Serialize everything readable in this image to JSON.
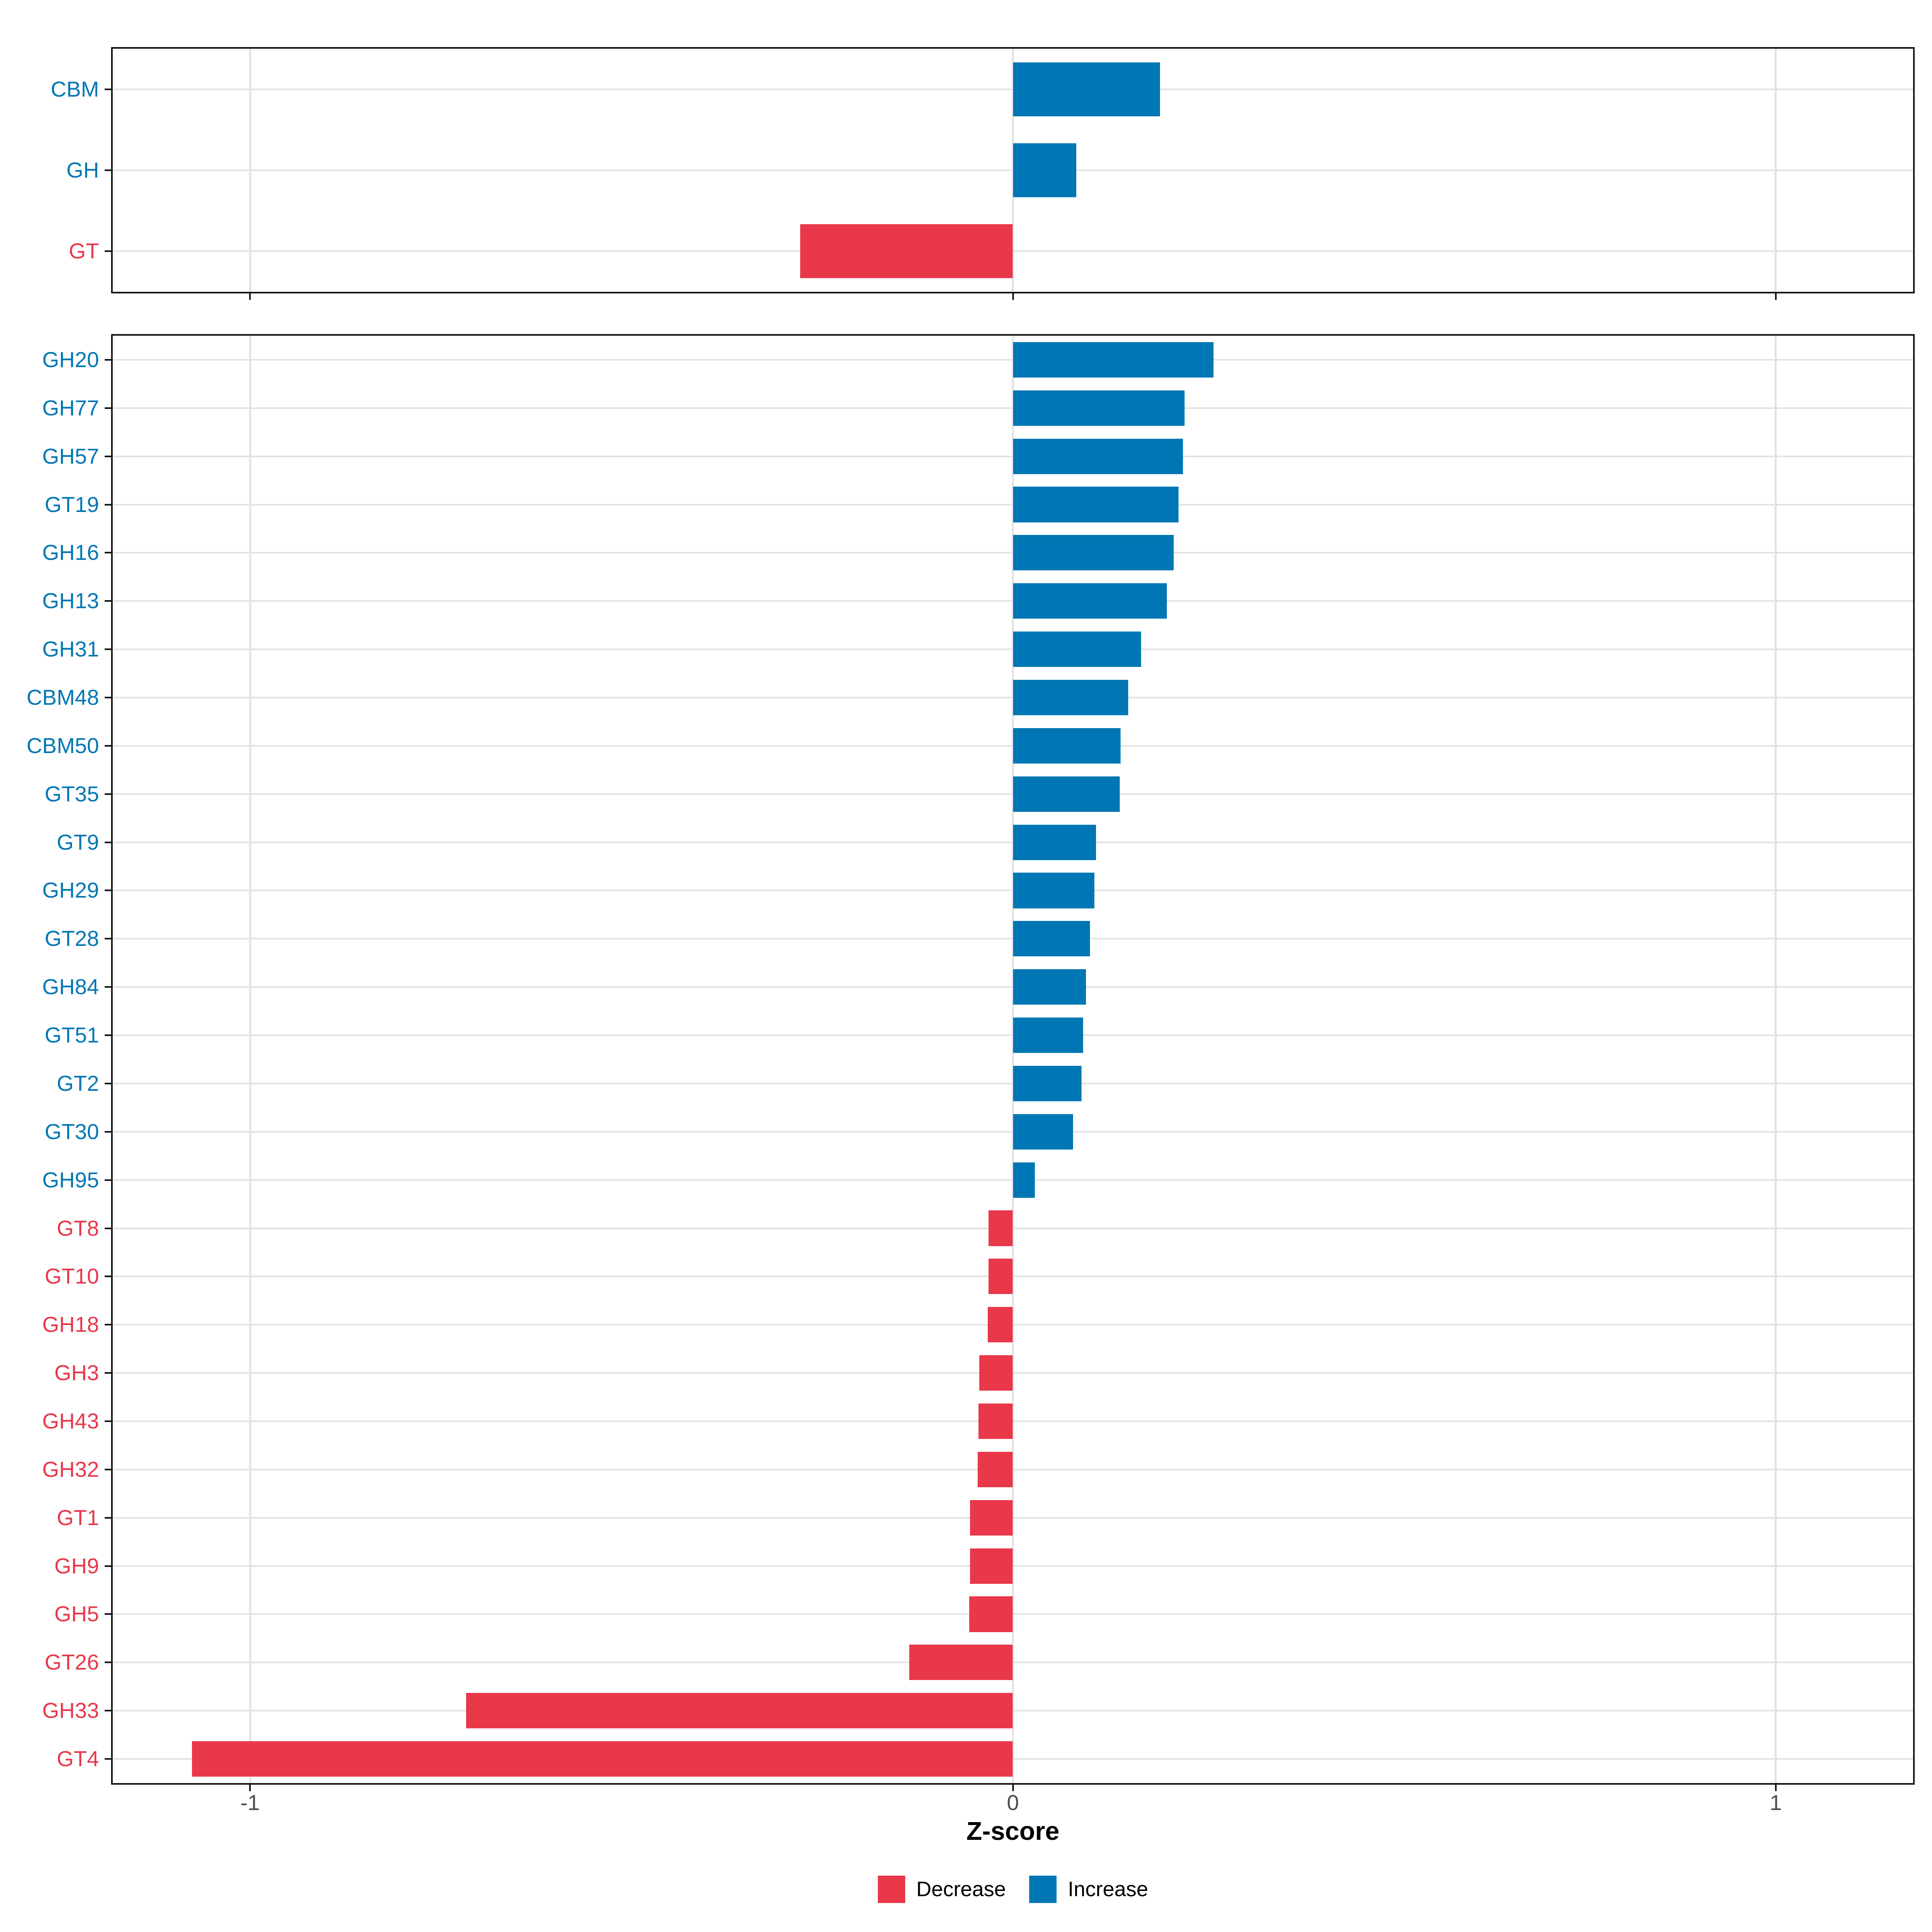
{
  "figure": {
    "xlabel": "Z-score",
    "x_tick_labels": [
      "-1",
      "0",
      "1"
    ]
  },
  "legend": {
    "items": [
      {
        "label": "Decrease",
        "color": "#e8384a"
      },
      {
        "label": "Increase",
        "color": "#0077b4"
      }
    ]
  },
  "colors": {
    "increase": "#0077b4",
    "decrease": "#e8384a",
    "grid": "#e3e3e3",
    "axis_text": "#4d4d4d",
    "panel_border": "#141414"
  },
  "chart_data": [
    {
      "type": "bar",
      "orientation": "horizontal",
      "panel": "top",
      "xlabel": "Z-score",
      "xlim": [
        -1.18,
        1.18
      ],
      "x_ticks": [
        -1,
        0,
        1
      ],
      "grid": true,
      "legend_position": "bottom",
      "categories": [
        "CBM",
        "GH",
        "GT"
      ],
      "values": [
        0.193,
        0.083,
        -0.279
      ]
    },
    {
      "type": "bar",
      "orientation": "horizontal",
      "panel": "bottom",
      "xlabel": "Z-score",
      "xlim": [
        -1.18,
        1.18
      ],
      "x_ticks": [
        -1,
        0,
        1
      ],
      "grid": true,
      "legend_position": "bottom",
      "categories": [
        "GH20",
        "GH77",
        "GH57",
        "GT19",
        "GH16",
        "GH13",
        "GH31",
        "CBM48",
        "CBM50",
        "GT35",
        "GT9",
        "GH29",
        "GT28",
        "GH84",
        "GT51",
        "GT2",
        "GT30",
        "GH95",
        "GT8",
        "GT10",
        "GH18",
        "GH3",
        "GH43",
        "GH32",
        "GT1",
        "GH9",
        "GH5",
        "GT26",
        "GH33",
        "GT4"
      ],
      "values": [
        0.263,
        0.225,
        0.223,
        0.217,
        0.211,
        0.202,
        0.168,
        0.151,
        0.141,
        0.14,
        0.109,
        0.107,
        0.101,
        0.096,
        0.092,
        0.09,
        0.079,
        0.029,
        -0.032,
        -0.032,
        -0.033,
        -0.044,
        -0.045,
        -0.046,
        -0.056,
        -0.056,
        -0.057,
        -0.136,
        -0.717,
        -1.076
      ]
    }
  ]
}
